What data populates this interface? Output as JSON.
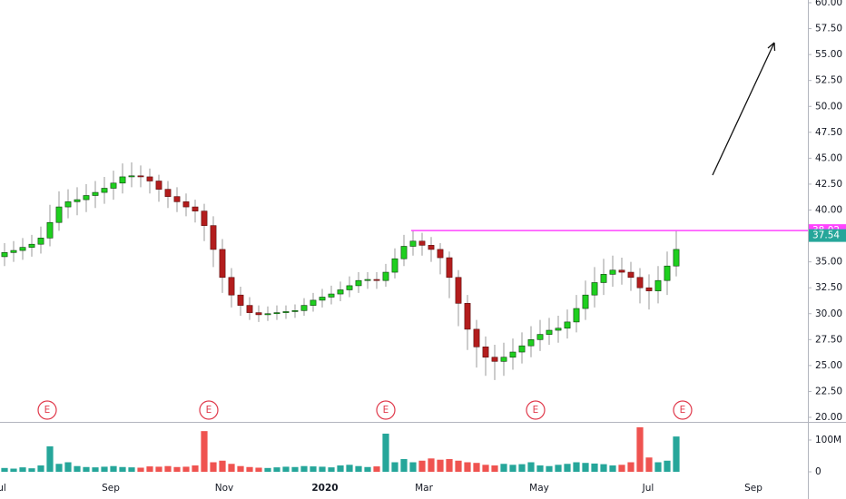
{
  "chart_data": {
    "type": "candlestick",
    "up_color": "#1fcf1f",
    "down_color": "#b31d1d",
    "wick_color": "#999999",
    "open": [
      35.5,
      35.9,
      36.1,
      36.4,
      36.7,
      37.3,
      38.8,
      40.3,
      40.8,
      41.0,
      41.4,
      41.7,
      42.1,
      42.6,
      43.2,
      43.3,
      43.2,
      42.8,
      42.0,
      41.3,
      40.8,
      40.3,
      39.9,
      38.5,
      36.2,
      33.5,
      31.8,
      30.8,
      30.1,
      29.9,
      30.0,
      30.1,
      30.2,
      30.3,
      30.8,
      31.3,
      31.6,
      31.9,
      32.3,
      32.7,
      33.2,
      33.3,
      33.2,
      34.0,
      35.3,
      36.5,
      37.0,
      36.6,
      36.2,
      35.4,
      33.5,
      31.0,
      28.5,
      26.8,
      25.8,
      25.4,
      25.8,
      26.3,
      26.9,
      27.5,
      28.0,
      28.4,
      28.6,
      29.2,
      30.5,
      31.8,
      33.0,
      33.8,
      34.2,
      34.0,
      33.5,
      32.5,
      32.2,
      33.2,
      34.6
    ],
    "high": [
      36.8,
      37.0,
      37.3,
      37.6,
      38.4,
      40.5,
      41.8,
      42.0,
      42.2,
      42.5,
      42.8,
      43.2,
      43.8,
      44.5,
      44.6,
      44.3,
      44.0,
      43.4,
      42.8,
      42.2,
      41.6,
      41.0,
      40.6,
      39.4,
      37.2,
      34.4,
      32.6,
      31.6,
      30.8,
      30.7,
      30.8,
      30.8,
      30.9,
      31.5,
      32.0,
      32.4,
      32.7,
      33.1,
      33.6,
      34.0,
      34.0,
      34.0,
      34.8,
      36.3,
      37.6,
      38.0,
      37.8,
      37.4,
      36.8,
      36.0,
      34.2,
      31.8,
      29.4,
      27.8,
      27.0,
      27.2,
      27.6,
      28.2,
      28.8,
      29.4,
      29.6,
      29.8,
      30.4,
      31.8,
      33.2,
      34.5,
      35.3,
      35.6,
      35.4,
      35.0,
      34.4,
      33.8,
      34.6,
      36.0,
      38.02
    ],
    "low": [
      34.6,
      35.0,
      35.2,
      35.5,
      35.8,
      36.5,
      38.0,
      39.2,
      39.5,
      39.8,
      40.2,
      40.6,
      41.0,
      41.6,
      42.2,
      42.2,
      41.6,
      40.8,
      40.2,
      39.8,
      39.4,
      38.8,
      37.0,
      34.5,
      32.0,
      30.6,
      29.8,
      29.4,
      29.2,
      29.3,
      29.4,
      29.5,
      29.6,
      29.8,
      30.2,
      30.6,
      30.9,
      31.2,
      31.6,
      32.0,
      32.4,
      32.4,
      32.6,
      33.4,
      34.6,
      35.6,
      35.6,
      35.0,
      33.8,
      31.5,
      28.8,
      26.5,
      24.8,
      24.0,
      23.6,
      24.0,
      24.6,
      25.2,
      25.8,
      26.4,
      27.0,
      27.2,
      27.6,
      28.2,
      29.4,
      30.6,
      31.8,
      32.6,
      32.8,
      32.2,
      31.0,
      30.4,
      31.0,
      31.8,
      33.6
    ],
    "close": [
      35.9,
      36.1,
      36.4,
      36.7,
      37.3,
      38.8,
      40.3,
      40.8,
      41.0,
      41.4,
      41.7,
      42.1,
      42.6,
      43.2,
      43.3,
      43.2,
      42.8,
      42.0,
      41.3,
      40.8,
      40.3,
      39.9,
      38.5,
      36.2,
      33.5,
      31.8,
      30.8,
      30.1,
      29.9,
      30.0,
      30.1,
      30.2,
      30.3,
      30.8,
      31.3,
      31.6,
      31.9,
      32.3,
      32.7,
      33.2,
      33.3,
      33.2,
      34.0,
      35.3,
      36.5,
      37.0,
      36.6,
      36.2,
      35.4,
      33.5,
      31.0,
      28.5,
      26.8,
      25.8,
      25.4,
      25.8,
      26.3,
      26.9,
      27.5,
      28.0,
      28.4,
      28.6,
      29.2,
      30.5,
      31.8,
      33.0,
      33.8,
      34.2,
      34.0,
      33.5,
      32.5,
      32.2,
      33.2,
      34.6,
      36.2
    ],
    "xlim": [
      -0.5,
      88.5
    ],
    "xticks": [
      {
        "value": -0.3,
        "label": "ul"
      },
      {
        "value": 11.7,
        "label": "Sep"
      },
      {
        "value": 24.2,
        "label": "Nov"
      },
      {
        "value": 35.3,
        "label": "2020"
      },
      {
        "value": 46.2,
        "label": "Mar"
      },
      {
        "value": 58.9,
        "label": "May"
      },
      {
        "value": 70.9,
        "label": "Jul"
      },
      {
        "value": 82.5,
        "label": "Sep"
      }
    ],
    "ylim": [
      20,
      60
    ],
    "yticks": [
      {
        "value": 20,
        "label": "20.00"
      },
      {
        "value": 22.5,
        "label": "22.50"
      },
      {
        "value": 25,
        "label": "25.00"
      },
      {
        "value": 27.5,
        "label": "27.50"
      },
      {
        "value": 30,
        "label": "30.00"
      },
      {
        "value": 32.5,
        "label": "32.50"
      },
      {
        "value": 35,
        "label": "35.00"
      },
      {
        "value": 37.5,
        "label": "37.50"
      },
      {
        "value": 40,
        "label": "40.00"
      },
      {
        "value": 42.5,
        "label": "42.50"
      },
      {
        "value": 45,
        "label": "45.00"
      },
      {
        "value": 47.5,
        "label": "47.50"
      },
      {
        "value": 50,
        "label": "50.00"
      },
      {
        "value": 52.5,
        "label": "52.50"
      },
      {
        "value": 55,
        "label": "55.00"
      },
      {
        "value": 57.5,
        "label": "57.50"
      },
      {
        "value": 60,
        "label": "60.00"
      }
    ],
    "volume": {
      "values": [
        12,
        10,
        14,
        11,
        20,
        80,
        25,
        30,
        18,
        15,
        14,
        16,
        18,
        15,
        14,
        13,
        17,
        16,
        18,
        15,
        16,
        20,
        128,
        30,
        35,
        25,
        18,
        15,
        13,
        12,
        14,
        16,
        15,
        18,
        17,
        16,
        14,
        20,
        22,
        18,
        15,
        17,
        120,
        30,
        40,
        30,
        35,
        42,
        38,
        40,
        35,
        30,
        28,
        22,
        20,
        25,
        22,
        24,
        30,
        20,
        18,
        22,
        25,
        30,
        28,
        26,
        24,
        20,
        22,
        30,
        140,
        45,
        30,
        35,
        111
      ],
      "up_color": "#26a69a",
      "down_color": "#ef5350",
      "ylim": [
        -57,
        157
      ],
      "yticks": [
        0,
        {
          "value": 100,
          "label": "100M"
        }
      ]
    },
    "earnings": {
      "label": "E",
      "x": [
        4.7,
        22.5,
        42.0,
        58.5,
        74.7
      ],
      "color": "#e0394b"
    },
    "resistance": {
      "value": 38.02,
      "x_start": 44.8,
      "color": "#ff44ff"
    },
    "price_labels": [
      {
        "value": 38.02,
        "color": "#ff44ff"
      },
      {
        "value": 37.54,
        "color": "#26a69a"
      }
    ]
  }
}
